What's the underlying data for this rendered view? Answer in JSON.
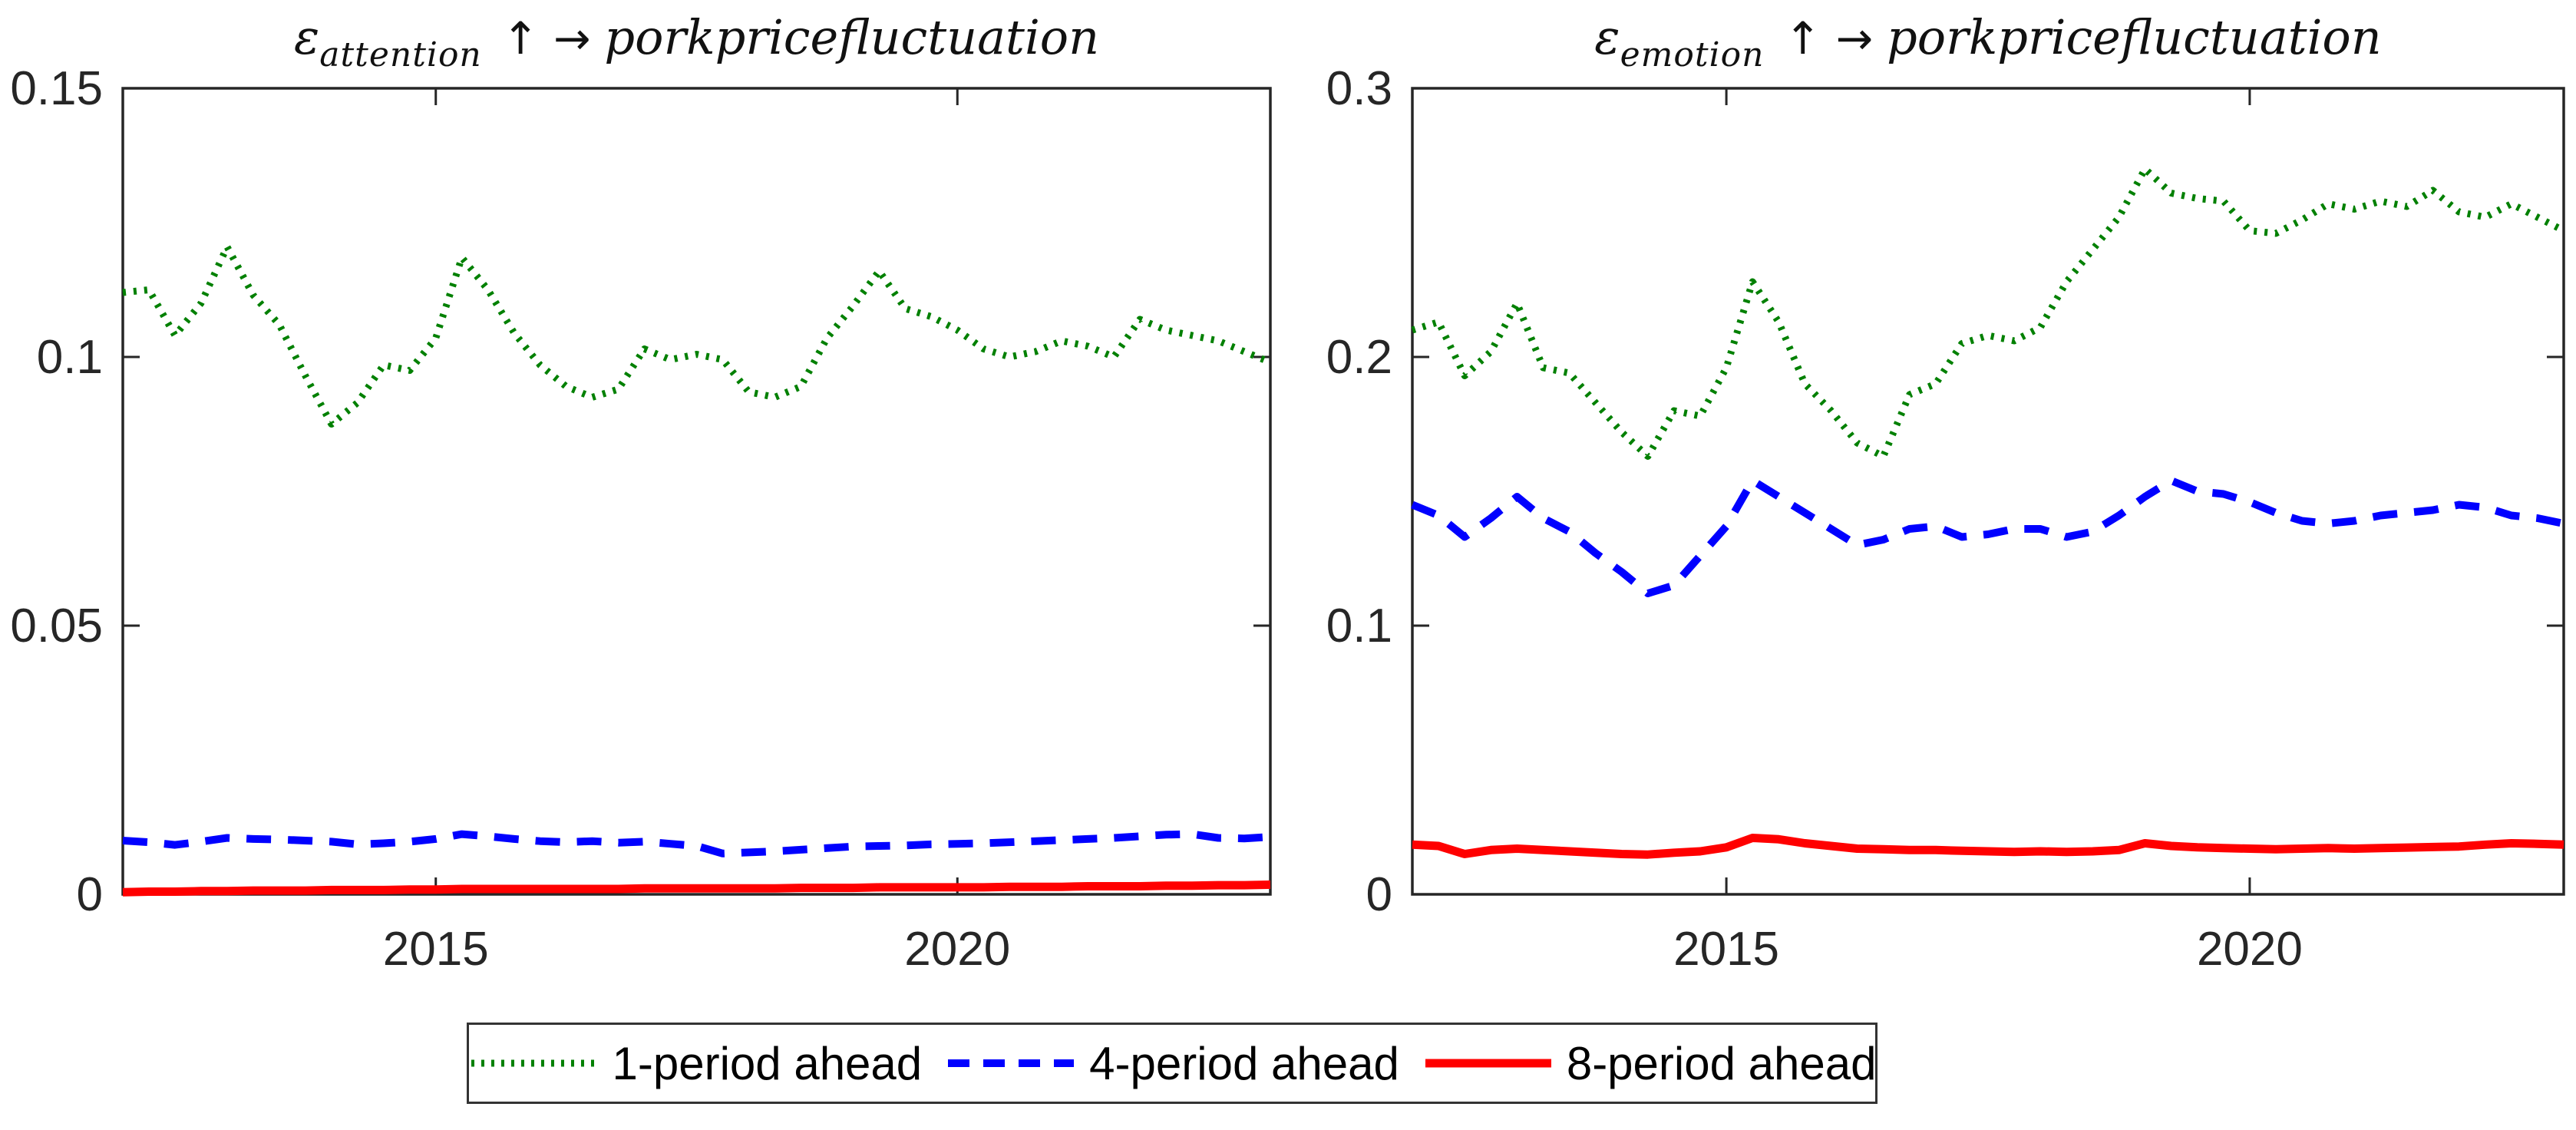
{
  "figure": {
    "background": "#ffffff",
    "axis_color": "#262626",
    "tick_label_color": "#262626"
  },
  "titles": {
    "left": {
      "symbol": "ε",
      "subscript": "attention",
      "arrows": "↑ →",
      "text": "porkpricefluctuation"
    },
    "right": {
      "symbol": "ε",
      "subscript": "emotion",
      "arrows": "↑ →",
      "text": "porkpricefluctuation"
    }
  },
  "legend": {
    "items": [
      {
        "label": "1-period ahead",
        "color": "#008000",
        "style": "dotted",
        "dash": "4 9",
        "width": 9
      },
      {
        "label": "4-period ahead",
        "color": "#0000ff",
        "style": "dashed",
        "dash": "28 18",
        "width": 10
      },
      {
        "label": "8-period ahead",
        "color": "#ff0000",
        "style": "solid",
        "dash": "",
        "width": 11
      }
    ]
  },
  "chart_data": [
    {
      "type": "line",
      "title": "epsilon_attention increase -> pork price fluctuation",
      "xlim": [
        2012,
        2023
      ],
      "ylim": [
        0,
        0.15
      ],
      "x_ticks": [
        2015,
        2020
      ],
      "x_tick_labels": [
        "2015",
        "2020"
      ],
      "y_ticks": [
        0,
        0.05,
        0.1,
        0.15
      ],
      "y_tick_labels": [
        "0",
        "0.05",
        "0.1",
        "0.15"
      ],
      "grid": false,
      "x": [
        2012,
        2012.25,
        2012.5,
        2012.75,
        2013,
        2013.25,
        2013.5,
        2013.75,
        2014,
        2014.25,
        2014.5,
        2014.75,
        2015,
        2015.25,
        2015.5,
        2015.75,
        2016,
        2016.25,
        2016.5,
        2016.75,
        2017,
        2017.25,
        2017.5,
        2017.75,
        2018,
        2018.25,
        2018.5,
        2018.75,
        2019,
        2019.25,
        2019.5,
        2019.75,
        2020,
        2020.25,
        2020.5,
        2020.75,
        2021,
        2021.25,
        2021.5,
        2021.75,
        2022,
        2022.25,
        2022.5,
        2022.75,
        2023
      ],
      "series": [
        {
          "name": "1-period ahead",
          "color": "#008000",
          "dash": "4 10",
          "width": 9,
          "values": [
            0.112,
            0.1125,
            0.104,
            0.11,
            0.1205,
            0.1115,
            0.106,
            0.0965,
            0.0875,
            0.0915,
            0.0985,
            0.0975,
            0.1035,
            0.1185,
            0.1125,
            0.1045,
            0.0985,
            0.0945,
            0.0925,
            0.094,
            0.1015,
            0.0995,
            0.1005,
            0.0995,
            0.0935,
            0.0925,
            0.0945,
            0.1035,
            0.1095,
            0.116,
            0.109,
            0.1075,
            0.105,
            0.1015,
            0.1,
            0.101,
            0.103,
            0.102,
            0.1,
            0.107,
            0.105,
            0.104,
            0.103,
            0.101,
            0.099
          ]
        },
        {
          "name": "4-period ahead",
          "color": "#0000ff",
          "dash": "32 22",
          "width": 10,
          "values": [
            0.01,
            0.0097,
            0.0092,
            0.0098,
            0.0105,
            0.0103,
            0.0102,
            0.01,
            0.0098,
            0.0093,
            0.0095,
            0.0098,
            0.0103,
            0.0112,
            0.0108,
            0.0103,
            0.0099,
            0.0097,
            0.0099,
            0.0096,
            0.0098,
            0.0094,
            0.009,
            0.0076,
            0.0078,
            0.008,
            0.0083,
            0.0086,
            0.0089,
            0.009,
            0.0091,
            0.0093,
            0.0094,
            0.0095,
            0.0097,
            0.0099,
            0.0101,
            0.0103,
            0.0105,
            0.0108,
            0.0111,
            0.0112,
            0.0105,
            0.0104,
            0.0107
          ]
        },
        {
          "name": "8-period ahead",
          "color": "#ff0000",
          "dash": "",
          "width": 11,
          "values": [
            0.0004,
            0.0005,
            0.0005,
            0.0006,
            0.0006,
            0.0007,
            0.0007,
            0.0007,
            0.0008,
            0.0008,
            0.0008,
            0.0009,
            0.0009,
            0.001,
            0.001,
            0.001,
            0.001,
            0.001,
            0.001,
            0.001,
            0.0011,
            0.0011,
            0.0011,
            0.0011,
            0.0011,
            0.0011,
            0.0012,
            0.0012,
            0.0012,
            0.0013,
            0.0013,
            0.0013,
            0.0013,
            0.0013,
            0.0014,
            0.0014,
            0.0014,
            0.0015,
            0.0015,
            0.0015,
            0.0016,
            0.0016,
            0.0017,
            0.0017,
            0.0018
          ]
        }
      ]
    },
    {
      "type": "line",
      "title": "epsilon_emotion increase -> pork price fluctuation",
      "xlim": [
        2012,
        2023
      ],
      "ylim": [
        0,
        0.3
      ],
      "x_ticks": [
        2015,
        2020
      ],
      "x_tick_labels": [
        "2015",
        "2020"
      ],
      "y_ticks": [
        0,
        0.1,
        0.2,
        0.3
      ],
      "y_tick_labels": [
        "0",
        "0.1",
        "0.2",
        "0.3"
      ],
      "grid": false,
      "x": [
        2012,
        2012.25,
        2012.5,
        2012.75,
        2013,
        2013.25,
        2013.5,
        2013.75,
        2014,
        2014.25,
        2014.5,
        2014.75,
        2015,
        2015.25,
        2015.5,
        2015.75,
        2016,
        2016.25,
        2016.5,
        2016.75,
        2017,
        2017.25,
        2017.5,
        2017.75,
        2018,
        2018.25,
        2018.5,
        2018.75,
        2019,
        2019.25,
        2019.5,
        2019.75,
        2020,
        2020.25,
        2020.5,
        2020.75,
        2021,
        2021.25,
        2021.5,
        2021.75,
        2022,
        2022.25,
        2022.5,
        2022.75,
        2023
      ],
      "series": [
        {
          "name": "1-period ahead",
          "color": "#008000",
          "dash": "4 10",
          "width": 9,
          "values": [
            0.21,
            0.213,
            0.193,
            0.202,
            0.22,
            0.196,
            0.194,
            0.183,
            0.172,
            0.163,
            0.18,
            0.178,
            0.196,
            0.228,
            0.213,
            0.19,
            0.18,
            0.168,
            0.163,
            0.186,
            0.19,
            0.205,
            0.208,
            0.206,
            0.211,
            0.228,
            0.24,
            0.252,
            0.27,
            0.261,
            0.259,
            0.258,
            0.247,
            0.246,
            0.251,
            0.257,
            0.255,
            0.258,
            0.256,
            0.262,
            0.254,
            0.252,
            0.257,
            0.252,
            0.247
          ]
        },
        {
          "name": "4-period ahead",
          "color": "#0000ff",
          "dash": "32 22",
          "width": 10,
          "values": [
            0.145,
            0.141,
            0.133,
            0.14,
            0.148,
            0.14,
            0.135,
            0.127,
            0.12,
            0.112,
            0.115,
            0.126,
            0.137,
            0.154,
            0.148,
            0.142,
            0.136,
            0.13,
            0.132,
            0.136,
            0.137,
            0.133,
            0.134,
            0.136,
            0.136,
            0.133,
            0.135,
            0.141,
            0.148,
            0.154,
            0.15,
            0.149,
            0.146,
            0.142,
            0.139,
            0.138,
            0.139,
            0.141,
            0.142,
            0.143,
            0.145,
            0.144,
            0.141,
            0.14,
            0.138
          ]
        },
        {
          "name": "8-period ahead",
          "color": "#ff0000",
          "dash": "",
          "width": 11,
          "values": [
            0.0185,
            0.018,
            0.015,
            0.0165,
            0.017,
            0.0165,
            0.016,
            0.0155,
            0.015,
            0.0148,
            0.0155,
            0.016,
            0.0175,
            0.021,
            0.0205,
            0.019,
            0.018,
            0.017,
            0.0168,
            0.0165,
            0.0165,
            0.0162,
            0.016,
            0.0158,
            0.016,
            0.0158,
            0.016,
            0.0165,
            0.019,
            0.018,
            0.0175,
            0.0172,
            0.017,
            0.0168,
            0.017,
            0.0172,
            0.017,
            0.0172,
            0.0174,
            0.0176,
            0.0178,
            0.0185,
            0.019,
            0.0188,
            0.0185
          ]
        }
      ]
    }
  ]
}
